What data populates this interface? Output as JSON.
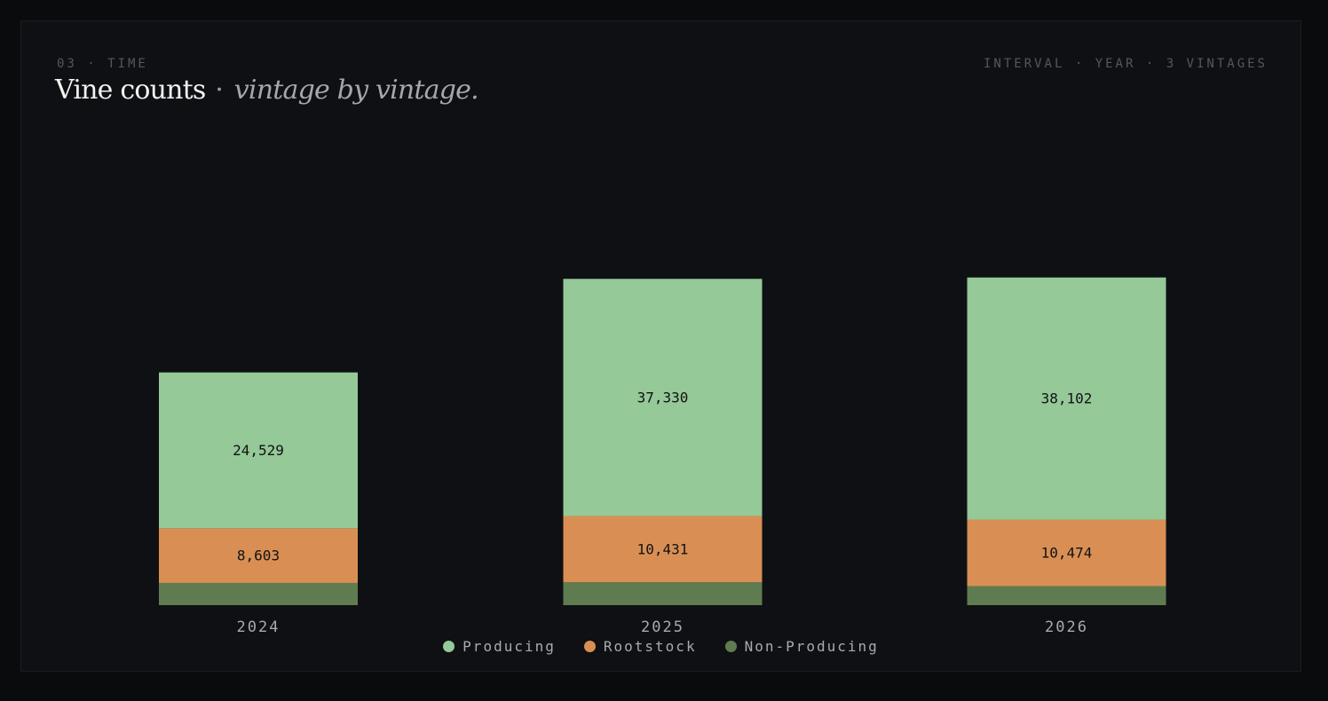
{
  "header": {
    "eyebrow": "03 · TIME",
    "meta": "INTERVAL · YEAR · 3 VINTAGES",
    "title_main": "Vine counts",
    "title_sep": "·",
    "title_italic": "vintage by vintage."
  },
  "colors": {
    "Producing": "#95c998",
    "Rootstock": "#d98f54",
    "Non-Producing": "#5f7c51"
  },
  "chart_data": {
    "type": "bar",
    "stacked": true,
    "categories": [
      "2024",
      "2025",
      "2026"
    ],
    "series": [
      {
        "name": "Non-Producing",
        "values": [
          3500,
          3600,
          3000
        ]
      },
      {
        "name": "Rootstock",
        "values": [
          8603,
          10431,
          10474
        ]
      },
      {
        "name": "Producing",
        "values": [
          24529,
          37330,
          38102
        ]
      }
    ],
    "ylim": [
      0,
      52000
    ],
    "grid": false,
    "legend": "bottom-center"
  },
  "legend": {
    "items": [
      {
        "name": "Producing",
        "color": "#95c998"
      },
      {
        "name": "Rootstock",
        "color": "#d98f54"
      },
      {
        "name": "Non-Producing",
        "color": "#5f7c51"
      }
    ]
  }
}
